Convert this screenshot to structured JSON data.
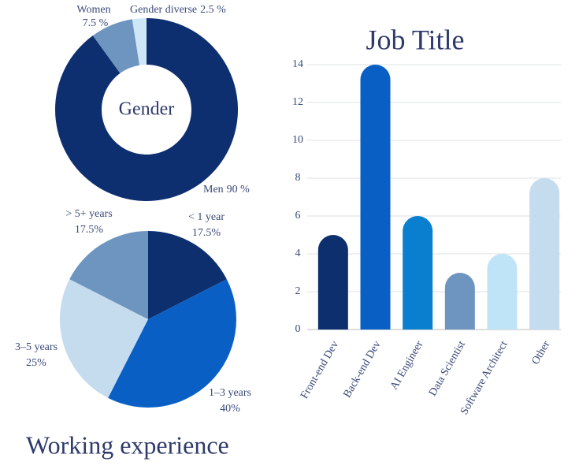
{
  "chart_data": [
    {
      "type": "donut",
      "title": "Gender",
      "categories": [
        "Men",
        "Women",
        "Gender diverse"
      ],
      "values": [
        90,
        7.5,
        2.5
      ],
      "value_labels": [
        "90 %",
        "7.5 %",
        "2.5 %"
      ],
      "colors": [
        "#0e2f6f",
        "#6d95bf",
        "#cfe6f7"
      ]
    },
    {
      "type": "pie",
      "title": "Working experience",
      "categories": [
        "< 1 year",
        "1–3 years",
        "3–5 years",
        "> 5+ years"
      ],
      "values": [
        17.5,
        40,
        25,
        17.5
      ],
      "value_labels": [
        "17.5%",
        "40%",
        "25%",
        "17.5%"
      ],
      "colors": [
        "#0d2f6e",
        "#0a5fc4",
        "#c5dbee",
        "#6d95bf"
      ]
    },
    {
      "type": "bar",
      "title": "Job Title",
      "categories": [
        "Front-end Dev",
        "Back-end Dev",
        "AI Engineer",
        "Data Scientist",
        "Software Architect",
        "Other"
      ],
      "values": [
        5,
        14,
        6,
        3,
        4,
        8
      ],
      "colors": [
        "#0d2f6e",
        "#0a5fc4",
        "#0a7fcf",
        "#6d95bf",
        "#c0e4f7",
        "#c5dbee"
      ],
      "ylim": [
        0,
        14
      ],
      "yticks": [
        0,
        2,
        4,
        6,
        8,
        10,
        12,
        14
      ],
      "grid": true
    }
  ]
}
